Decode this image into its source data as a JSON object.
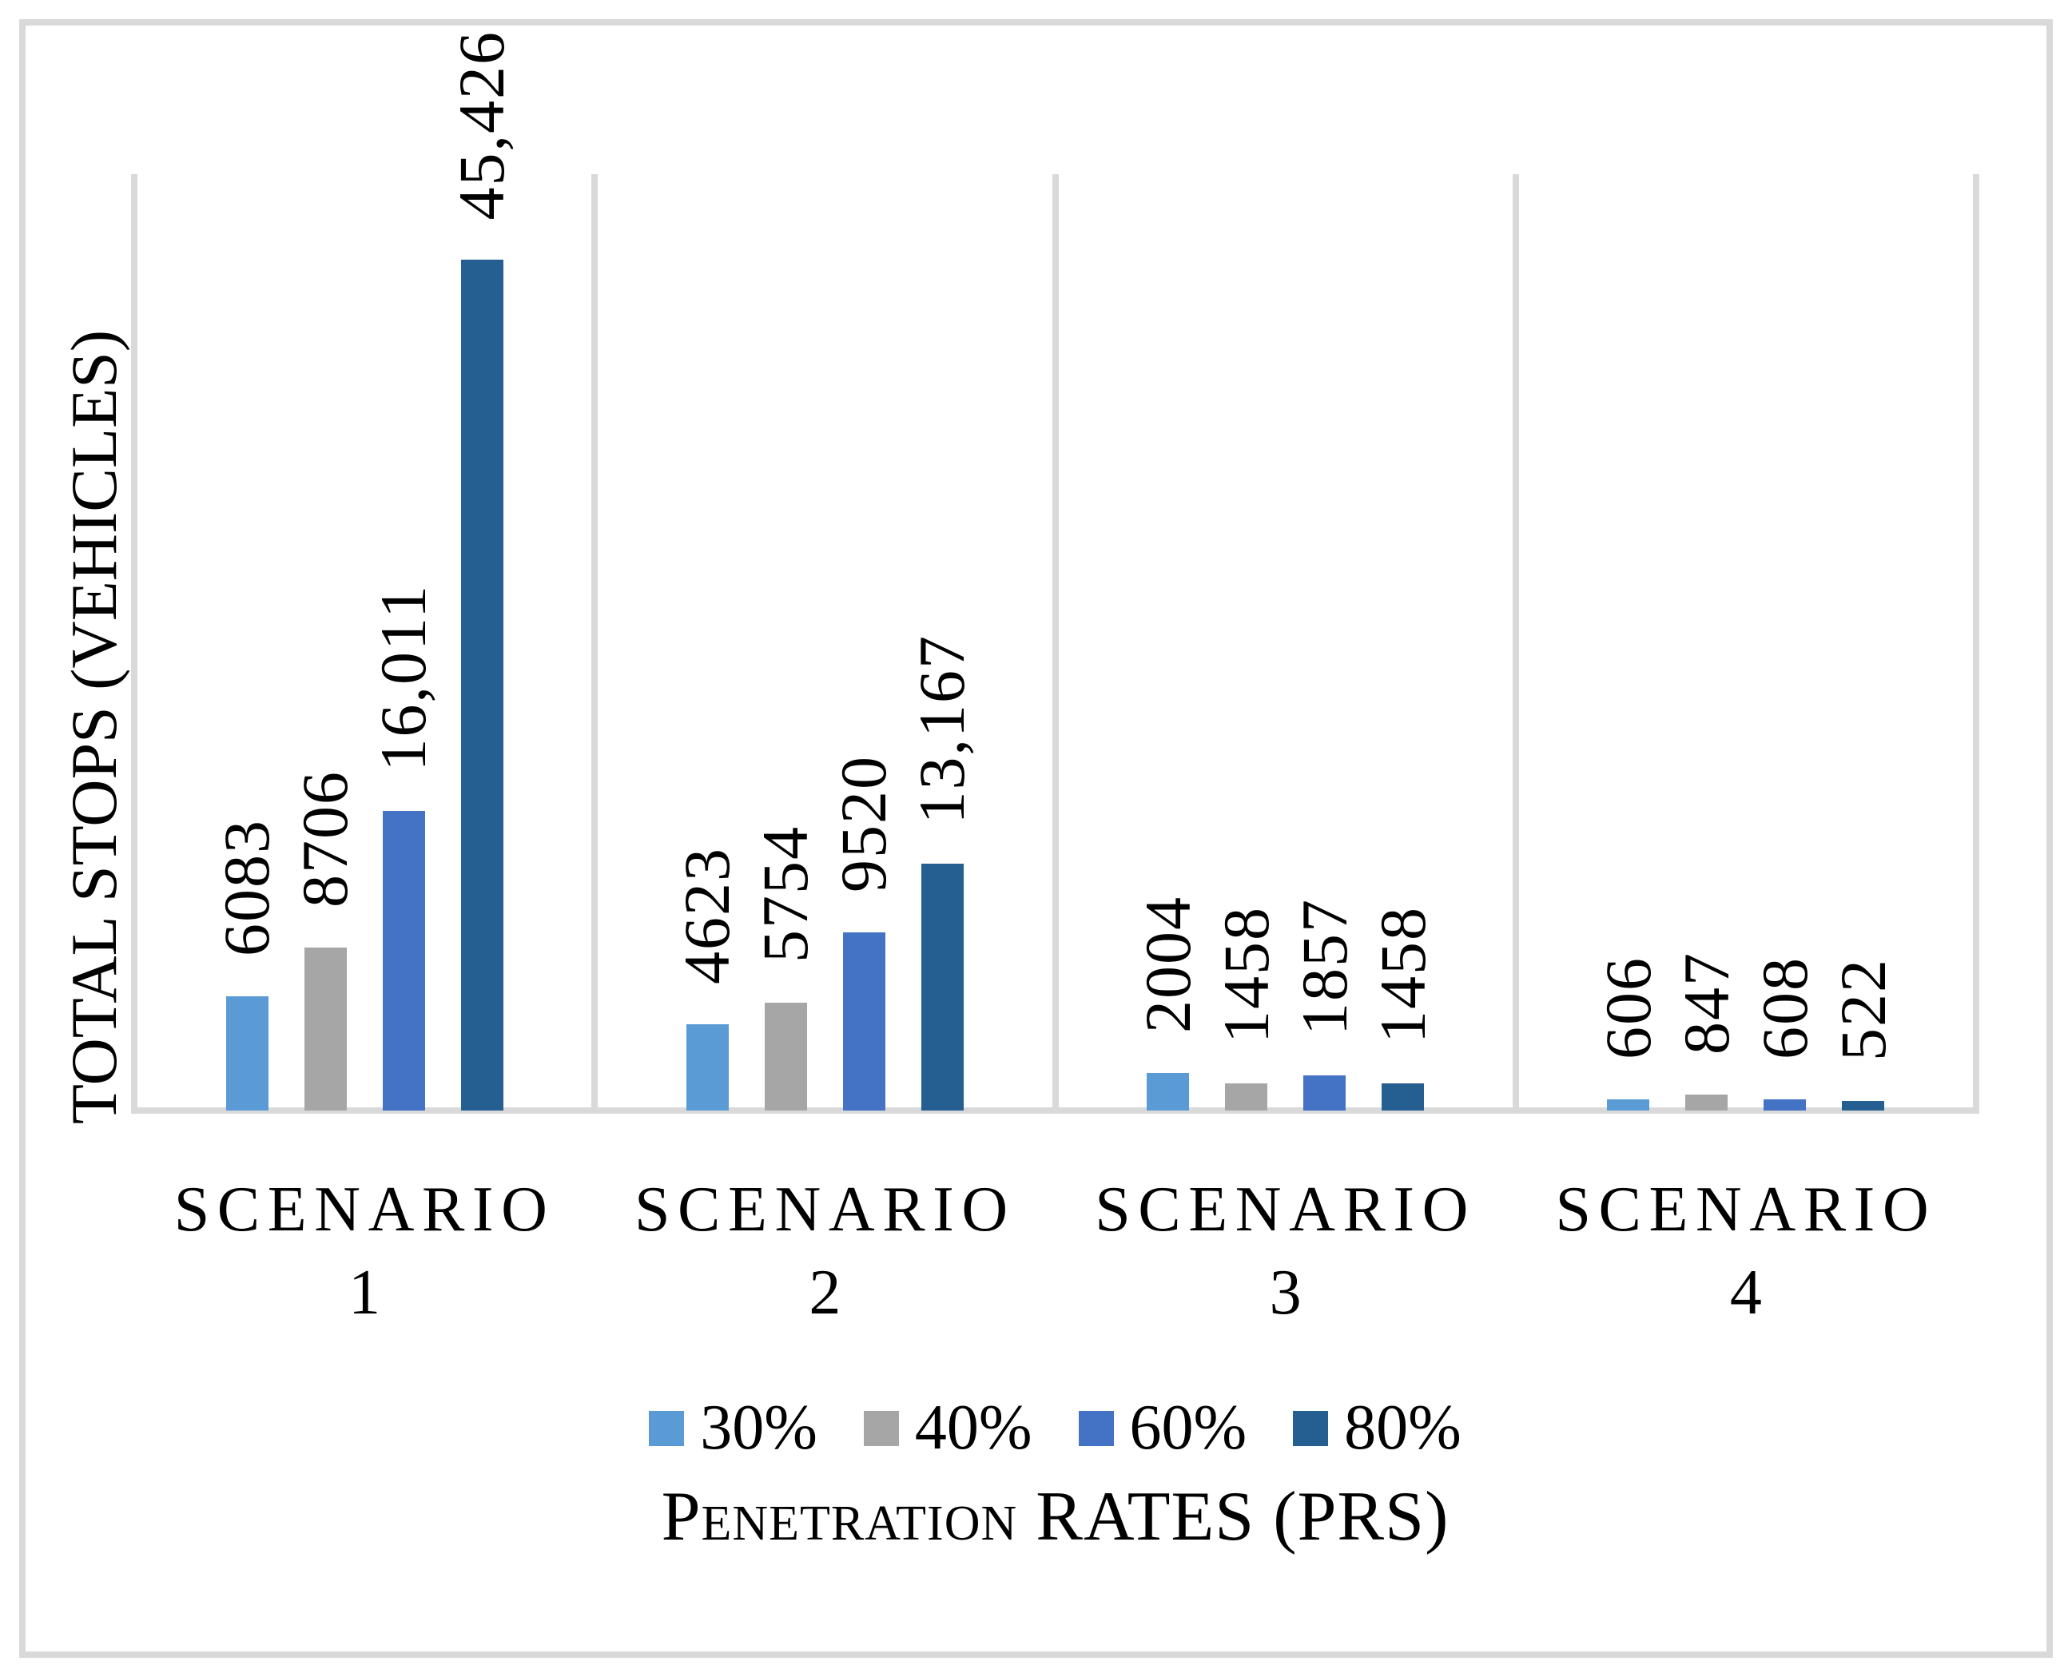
{
  "chart_data": {
    "type": "bar",
    "categories": [
      "SCENARIO 1",
      "SCENARIO 2",
      "SCENARIO 3",
      "SCENARIO 4"
    ],
    "series": [
      {
        "name": "30%",
        "color": "#5B9BD5",
        "values": [
          6083,
          4623,
          2004,
          606
        ],
        "labels": [
          "6083",
          "4623",
          "2004",
          "606"
        ]
      },
      {
        "name": "40%",
        "color": "#A6A6A6",
        "values": [
          8706,
          5754,
          1458,
          847
        ],
        "labels": [
          "8706",
          "5754",
          "1458",
          "847"
        ]
      },
      {
        "name": "60%",
        "color": "#4472C4",
        "values": [
          16011,
          9520,
          1857,
          608
        ],
        "labels": [
          "16,011",
          "9520",
          "1857",
          "608"
        ]
      },
      {
        "name": "80%",
        "color": "#255E91",
        "values": [
          45426,
          13167,
          1458,
          522
        ],
        "labels": [
          "45,426",
          "13,167",
          "1458",
          "522"
        ]
      }
    ],
    "xlabel": "Penetration RATES (PRS)",
    "ylabel": "TOTAL STOPS (VEHICLES)",
    "ylim": [
      0,
      50000
    ],
    "grid": "vertical category separators only",
    "legend_position": "bottom",
    "data_label_rotation": "vertical-bottom-to-top",
    "colors": {
      "gridline": "#D9D9D9",
      "axis_line": "#D9D9D9",
      "chart_border": "#D9D9D9",
      "text": "#000000",
      "background": "#FFFFFF"
    }
  }
}
